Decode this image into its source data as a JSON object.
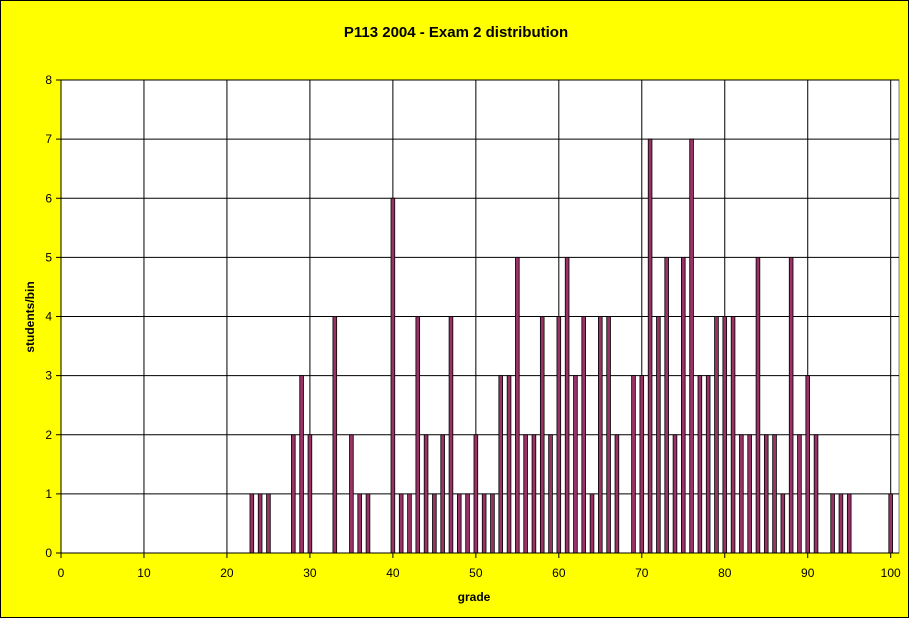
{
  "chart_data": {
    "type": "bar",
    "title": "P113 2004 - Exam 2 distribution",
    "xlabel": "grade",
    "ylabel": "students/bin",
    "xlim": [
      0,
      101
    ],
    "ylim": [
      0,
      8
    ],
    "x_ticks": [
      0,
      10,
      20,
      30,
      40,
      50,
      60,
      70,
      80,
      90,
      100
    ],
    "y_ticks": [
      0,
      1,
      2,
      3,
      4,
      5,
      6,
      7,
      8
    ],
    "grid": true,
    "legend": "none",
    "colors": {
      "background": "#ffff00",
      "plot": "#ffffff",
      "bar_fill": "#993366",
      "bar_edge": "#000000"
    },
    "x": [
      23,
      24,
      25,
      28,
      29,
      30,
      33,
      35,
      36,
      37,
      40,
      41,
      42,
      43,
      44,
      45,
      46,
      47,
      48,
      49,
      50,
      51,
      52,
      53,
      54,
      55,
      56,
      57,
      58,
      59,
      60,
      61,
      62,
      63,
      64,
      65,
      66,
      67,
      69,
      70,
      71,
      72,
      73,
      74,
      75,
      76,
      77,
      78,
      79,
      80,
      81,
      82,
      83,
      84,
      85,
      86,
      87,
      88,
      89,
      90,
      91,
      93,
      94,
      95,
      100
    ],
    "values": [
      1,
      1,
      1,
      2,
      3,
      2,
      4,
      2,
      1,
      1,
      6,
      1,
      1,
      4,
      2,
      1,
      2,
      4,
      1,
      1,
      2,
      1,
      1,
      3,
      3,
      5,
      2,
      2,
      4,
      2,
      4,
      5,
      3,
      4,
      1,
      4,
      4,
      2,
      3,
      3,
      7,
      4,
      5,
      2,
      5,
      7,
      3,
      3,
      4,
      4,
      4,
      2,
      2,
      5,
      2,
      2,
      1,
      5,
      2,
      3,
      2,
      1,
      1,
      1,
      1
    ]
  }
}
